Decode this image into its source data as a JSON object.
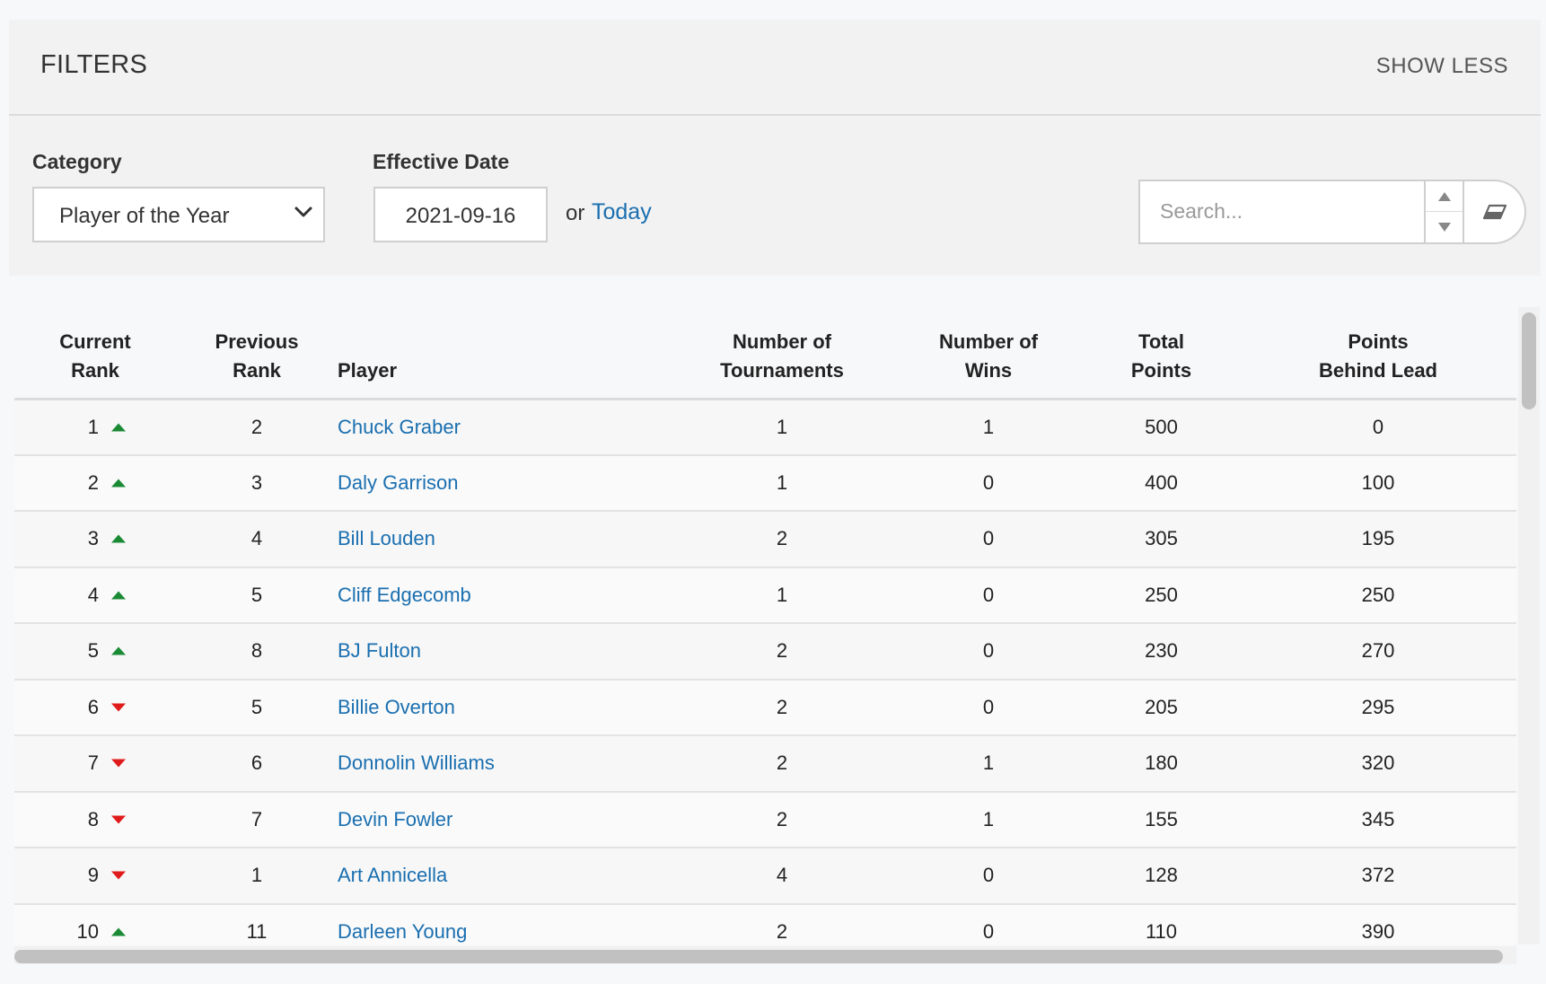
{
  "filters": {
    "title": "FILTERS",
    "toggle_label": "SHOW LESS",
    "category_label": "Category",
    "category_value": "Player of the Year",
    "date_label": "Effective Date",
    "date_value": "2021-09-16",
    "or_text": "or",
    "today_link": "Today",
    "search_placeholder": "Search..."
  },
  "table": {
    "headers": {
      "current_rank": [
        "Current",
        "Rank"
      ],
      "previous_rank": [
        "Previous",
        "Rank"
      ],
      "player": "Player",
      "tournaments": [
        "Number of",
        "Tournaments"
      ],
      "wins": [
        "Number of",
        "Wins"
      ],
      "total_points": [
        "Total",
        "Points"
      ],
      "points_behind": [
        "Points",
        "Behind Lead"
      ]
    },
    "rows": [
      {
        "rank": "1",
        "trend": "up",
        "previous": "2",
        "player": "Chuck Graber",
        "tournaments": "1",
        "wins": "1",
        "total": "500",
        "behind": "0"
      },
      {
        "rank": "2",
        "trend": "up",
        "previous": "3",
        "player": "Daly Garrison",
        "tournaments": "1",
        "wins": "0",
        "total": "400",
        "behind": "100"
      },
      {
        "rank": "3",
        "trend": "up",
        "previous": "4",
        "player": "Bill Louden",
        "tournaments": "2",
        "wins": "0",
        "total": "305",
        "behind": "195"
      },
      {
        "rank": "4",
        "trend": "up",
        "previous": "5",
        "player": "Cliff Edgecomb",
        "tournaments": "1",
        "wins": "0",
        "total": "250",
        "behind": "250"
      },
      {
        "rank": "5",
        "trend": "up",
        "previous": "8",
        "player": "BJ Fulton",
        "tournaments": "2",
        "wins": "0",
        "total": "230",
        "behind": "270"
      },
      {
        "rank": "6",
        "trend": "down",
        "previous": "5",
        "player": "Billie Overton",
        "tournaments": "2",
        "wins": "0",
        "total": "205",
        "behind": "295"
      },
      {
        "rank": "7",
        "trend": "down",
        "previous": "6",
        "player": "Donnolin Williams",
        "tournaments": "2",
        "wins": "1",
        "total": "180",
        "behind": "320"
      },
      {
        "rank": "8",
        "trend": "down",
        "previous": "7",
        "player": "Devin Fowler",
        "tournaments": "2",
        "wins": "1",
        "total": "155",
        "behind": "345"
      },
      {
        "rank": "9",
        "trend": "down",
        "previous": "1",
        "player": "Art Annicella",
        "tournaments": "4",
        "wins": "0",
        "total": "128",
        "behind": "372"
      },
      {
        "rank": "10",
        "trend": "up",
        "previous": "11",
        "player": "Darleen Young",
        "tournaments": "2",
        "wins": "0",
        "total": "110",
        "behind": "390"
      }
    ]
  },
  "colors": {
    "link": "#1a6fb0",
    "trend_up": "#1a8a35",
    "trend_down": "#e01b1b"
  },
  "icons": {
    "select": "chevron-down-icon",
    "spin_up": "caret-up-icon",
    "spin_down": "caret-down-icon",
    "clear": "eraser-icon",
    "trend_up": "arrow-up-icon",
    "trend_down": "arrow-down-icon"
  }
}
